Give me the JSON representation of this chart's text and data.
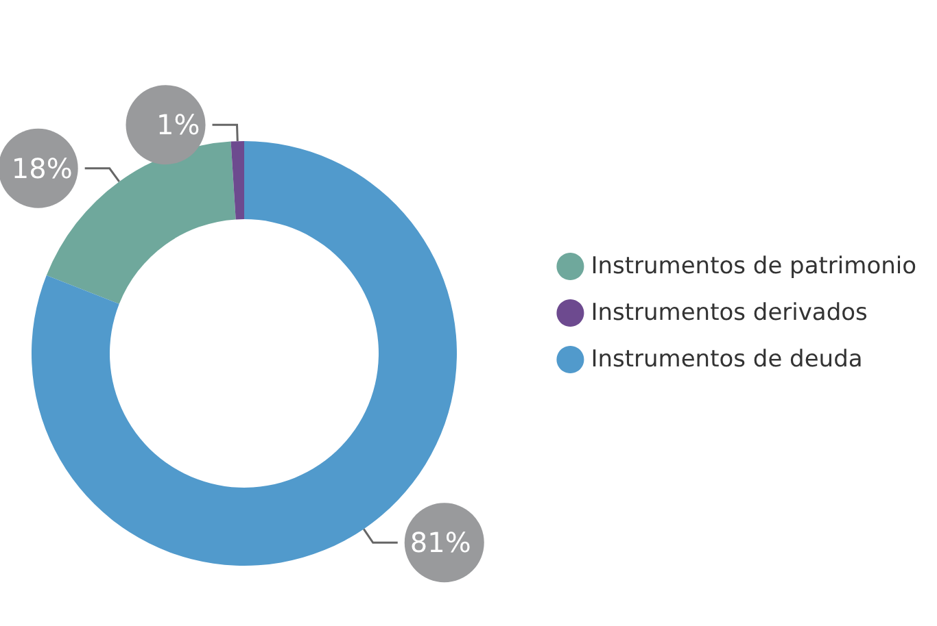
{
  "chart_data": {
    "type": "donut",
    "categories": [
      "Instrumentos de patrimonio",
      "Instrumentos derivados",
      "Instrumentos de deuda"
    ],
    "values": [
      18,
      1,
      81
    ],
    "colors": [
      "#6fa89c",
      "#6d4a8f",
      "#519acc"
    ],
    "value_labels": [
      "18%",
      "1%",
      "81%"
    ],
    "legend": "right"
  }
}
